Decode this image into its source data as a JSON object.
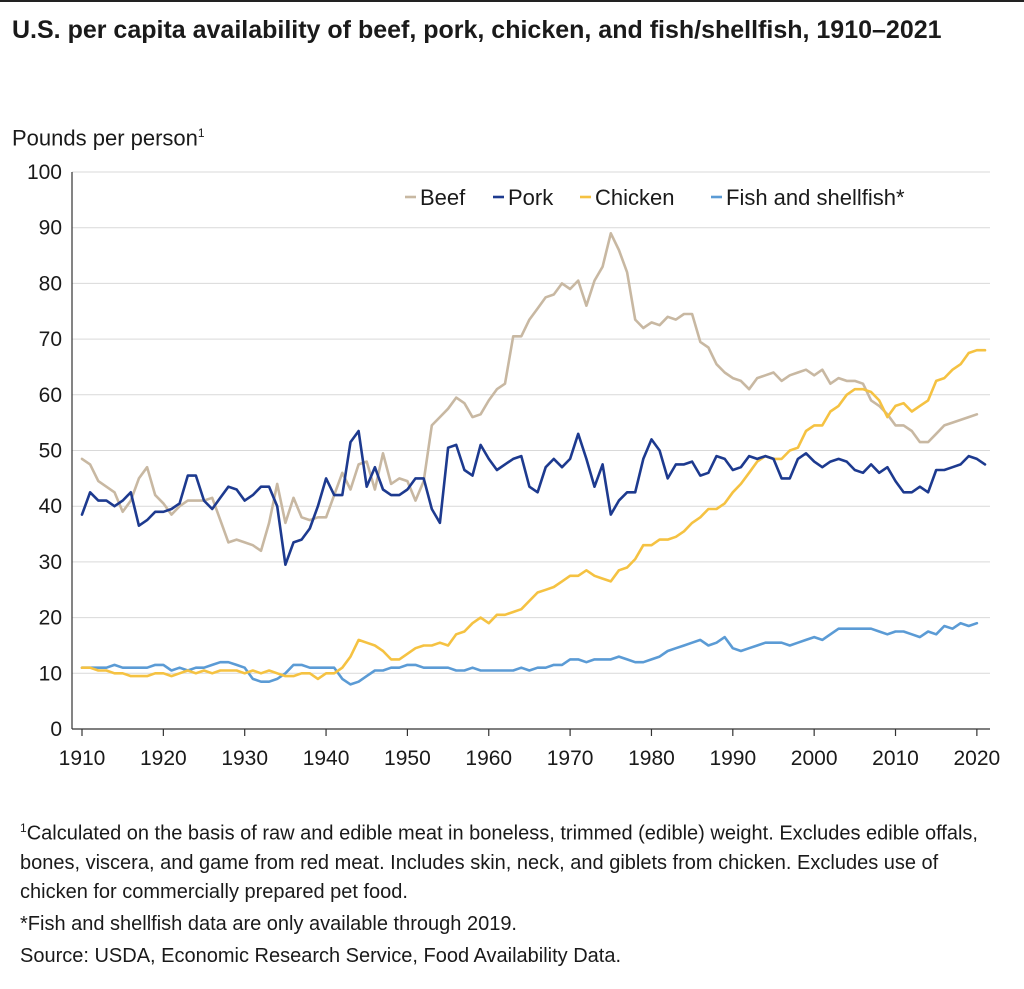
{
  "title": "U.S. per capita availability of beef, pork, chicken, and fish/shellfish, 1910–2021",
  "ylabel_text": "Pounds per person",
  "ylabel_sup": "1",
  "footnotes": {
    "note1_sup": "1",
    "note1": "Calculated on the basis of raw and edible meat in boneless, trimmed (edible) weight. Excludes edible offals, bones, viscera, and game from red meat. Includes skin, neck, and giblets from chicken. Excludes use of chicken for commercially prepared pet food.",
    "note2": "*Fish and shellfish data are only available through 2019.",
    "source": "Source: USDA, Economic Research Service, Food Availability Data."
  },
  "chart_data": {
    "type": "line",
    "title": "U.S. per capita availability of beef, pork, chicken, and fish/shellfish, 1910–2021",
    "xlabel": "",
    "ylabel": "Pounds per person",
    "xlim": [
      1910,
      2021
    ],
    "ylim": [
      0,
      100
    ],
    "xticks": [
      1910,
      1920,
      1930,
      1940,
      1950,
      1960,
      1970,
      1980,
      1990,
      2000,
      2010,
      2020
    ],
    "yticks": [
      0,
      10,
      20,
      30,
      40,
      50,
      60,
      70,
      80,
      90,
      100
    ],
    "grid": "horizontal",
    "legend": "top-right",
    "series": [
      {
        "name": "Beef",
        "color": "#c8b8a2",
        "x_start": 1910,
        "values": [
          48.5,
          47.5,
          44.5,
          43.5,
          42.5,
          39,
          41,
          45,
          47,
          42,
          40.5,
          38.5,
          40,
          41,
          41,
          41,
          41.5,
          37.5,
          33.5,
          34,
          33.5,
          33,
          32,
          37,
          44,
          37,
          41.5,
          38,
          37.5,
          38,
          38,
          42,
          46,
          43,
          47.5,
          48,
          43,
          49.5,
          44,
          45,
          44.5,
          41,
          44.5,
          54.5,
          56,
          57.5,
          59.5,
          58.5,
          56,
          56.5,
          59,
          61,
          62,
          70.5,
          70.5,
          73.5,
          75.5,
          77.5,
          78,
          80,
          79,
          80.5,
          76,
          80.5,
          83,
          89,
          86,
          82,
          73.5,
          72,
          73,
          72.5,
          74,
          73.5,
          74.5,
          74.5,
          69.5,
          68.5,
          65.5,
          64,
          63,
          62.5,
          61,
          63,
          63.5,
          64,
          62.5,
          63.5,
          64,
          64.5,
          63.5,
          64.5,
          62,
          63,
          62.5,
          62.5,
          62,
          59,
          58,
          56.5,
          54.5,
          54.5,
          53.5,
          51.5,
          51.5,
          53,
          54.5,
          55,
          55.5,
          56,
          56.5
        ]
      },
      {
        "name": "Pork",
        "color": "#1d3a8f",
        "x_start": 1910,
        "values": [
          38.5,
          42.5,
          41,
          41,
          40,
          41,
          42.5,
          36.5,
          37.5,
          39,
          39,
          39.5,
          40.5,
          45.5,
          45.5,
          41,
          39.5,
          41.5,
          43.5,
          43,
          41,
          42,
          43.5,
          43.5,
          40,
          29.5,
          33.5,
          34,
          36,
          40,
          45,
          42,
          42,
          51.5,
          53.5,
          43.5,
          47,
          43,
          42,
          42,
          43,
          45,
          45,
          39.5,
          37,
          50.5,
          51,
          46.5,
          45.5,
          51,
          48.5,
          46.5,
          47.5,
          48.5,
          49,
          43.5,
          42.5,
          47,
          48.5,
          47,
          48.5,
          53,
          48.5,
          43.5,
          47.5,
          38.5,
          41,
          42.5,
          42.5,
          48.5,
          52,
          50,
          45,
          47.5,
          47.5,
          48,
          45.5,
          46,
          49,
          48.5,
          46.5,
          47,
          49,
          48.5,
          49,
          48.5,
          45,
          45,
          48.5,
          49.5,
          48,
          47,
          48,
          48.5,
          48,
          46.5,
          46,
          47.5,
          46,
          47,
          44.5,
          42.5,
          42.5,
          43.5,
          42.5,
          46.5,
          46.5,
          47,
          47.5,
          49,
          48.5,
          47.5
        ]
      },
      {
        "name": "Chicken",
        "color": "#f5c242",
        "x_start": 1910,
        "values": [
          11,
          11,
          10.5,
          10.5,
          10,
          10,
          9.5,
          9.5,
          9.5,
          10,
          10,
          9.5,
          10,
          10.5,
          10,
          10.5,
          10,
          10.5,
          10.5,
          10.5,
          10,
          10.5,
          10,
          10.5,
          10,
          9.5,
          9.5,
          10,
          10,
          9,
          10,
          10,
          11,
          13,
          16,
          15.5,
          15,
          14,
          12.5,
          12.5,
          13.5,
          14.5,
          15,
          15,
          15.5,
          15,
          17,
          17.5,
          19,
          20,
          19,
          20.5,
          20.5,
          21,
          21.5,
          23,
          24.5,
          25,
          25.5,
          26.5,
          27.5,
          27.5,
          28.5,
          27.5,
          27,
          26.5,
          28.5,
          29,
          30.5,
          33,
          33,
          34,
          34,
          34.5,
          35.5,
          37,
          38,
          39.5,
          39.5,
          40.5,
          42.5,
          44,
          46,
          48,
          49,
          48.5,
          48.5,
          50,
          50.5,
          53.5,
          54.5,
          54.5,
          57,
          58,
          60,
          61,
          61,
          60.5,
          59,
          56,
          58,
          58.5,
          57,
          58,
          59,
          62.5,
          63,
          64.5,
          65.5,
          67.5,
          68,
          68
        ]
      },
      {
        "name": "Fish and shellfish*",
        "color": "#5b9bd5",
        "x_start": 1910,
        "values": [
          11,
          11,
          11,
          11,
          11.5,
          11,
          11,
          11,
          11,
          11.5,
          11.5,
          10.5,
          11,
          10.5,
          11,
          11,
          11.5,
          12,
          12,
          11.5,
          11,
          9,
          8.5,
          8.5,
          9,
          10,
          11.5,
          11.5,
          11,
          11,
          11,
          11,
          9,
          8,
          8.5,
          9.5,
          10.5,
          10.5,
          11,
          11,
          11.5,
          11.5,
          11,
          11,
          11,
          11,
          10.5,
          10.5,
          11,
          10.5,
          10.5,
          10.5,
          10.5,
          10.5,
          11,
          10.5,
          11,
          11,
          11.5,
          11.5,
          12.5,
          12.5,
          12,
          12.5,
          12.5,
          12.5,
          13,
          12.5,
          12,
          12,
          12.5,
          13,
          14,
          14.5,
          15,
          15.5,
          16,
          15,
          15.5,
          16.5,
          14.5,
          14,
          14.5,
          15,
          15.5,
          15.5,
          15.5,
          15,
          15.5,
          16,
          16.5,
          16,
          17,
          18,
          18,
          18,
          18,
          18,
          17.5,
          17,
          17.5,
          17.5,
          17,
          16.5,
          17.5,
          17,
          18.5,
          18,
          19,
          18.5,
          19
        ]
      }
    ]
  }
}
